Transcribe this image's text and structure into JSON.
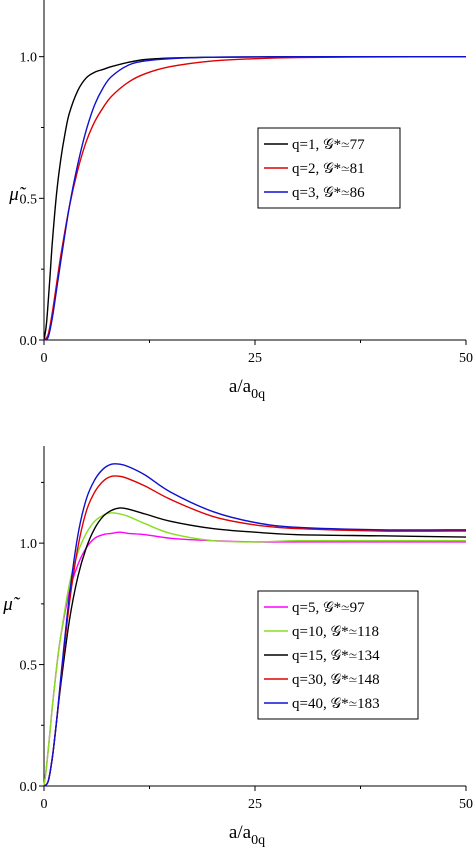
{
  "chart_data": [
    {
      "type": "line",
      "title": "",
      "xlabel": "a/a",
      "xlabel_sub": "0q",
      "ylabel": "μ̃",
      "xlim": [
        0,
        50
      ],
      "ylim": [
        0,
        1.2
      ],
      "xticks": [
        0,
        25,
        50
      ],
      "xtick_labels": [
        "0",
        "25",
        "50"
      ],
      "yticks": [
        0.0,
        0.5,
        1.0
      ],
      "ytick_labels": [
        "0.0",
        "0.5",
        "1.0"
      ],
      "grid": false,
      "legend_position": "right-middle",
      "series": [
        {
          "name": "q=1, 𝒢*≃77",
          "color": "#000000",
          "x": [
            0,
            0.3,
            0.7,
            1.0,
            1.5,
            2.0,
            2.5,
            3.0,
            4.0,
            5.0,
            6.0,
            7.0,
            8.0,
            10.0,
            12.0,
            15.0,
            20.0,
            25.0,
            30.0,
            40.0,
            50.0
          ],
          "y": [
            0,
            0.06,
            0.22,
            0.35,
            0.52,
            0.64,
            0.73,
            0.8,
            0.88,
            0.925,
            0.945,
            0.955,
            0.965,
            0.98,
            0.99,
            0.995,
            0.998,
            0.999,
            1.0,
            1.0,
            1.0
          ]
        },
        {
          "name": "q=2, 𝒢*≃81",
          "color": "#e00000",
          "x": [
            0,
            0.5,
            1.0,
            1.5,
            2.0,
            3.0,
            4.0,
            5.0,
            6.0,
            7.0,
            8.0,
            10.0,
            12.0,
            15.0,
            20.0,
            25.0,
            30.0,
            40.0,
            50.0
          ],
          "y": [
            0,
            0.02,
            0.1,
            0.2,
            0.3,
            0.47,
            0.6,
            0.7,
            0.77,
            0.82,
            0.86,
            0.91,
            0.94,
            0.965,
            0.985,
            0.993,
            0.997,
            0.999,
            1.0
          ]
        },
        {
          "name": "q=3, 𝒢*≃86",
          "color": "#1010d0",
          "x": [
            0,
            0.5,
            1.0,
            1.5,
            2.0,
            3.0,
            4.0,
            5.0,
            6.0,
            7.0,
            8.0,
            10.0,
            12.0,
            15.0,
            20.0,
            25.0,
            30.0,
            40.0,
            50.0
          ],
          "y": [
            0,
            0.01,
            0.08,
            0.18,
            0.28,
            0.47,
            0.62,
            0.74,
            0.83,
            0.89,
            0.93,
            0.97,
            0.985,
            0.993,
            0.998,
            0.999,
            1.0,
            1.0,
            1.0
          ]
        }
      ]
    },
    {
      "type": "line",
      "title": "",
      "xlabel": "a/a",
      "xlabel_sub": "0q",
      "ylabel": "μ̃",
      "xlim": [
        0,
        50
      ],
      "ylim": [
        0,
        1.4
      ],
      "xticks": [
        0,
        25,
        50
      ],
      "xtick_labels": [
        "0",
        "25",
        "50"
      ],
      "yticks": [
        0.0,
        0.5,
        1.0
      ],
      "ytick_labels": [
        "0.0",
        "0.5",
        "1.0"
      ],
      "grid": false,
      "legend_position": "right-bottom",
      "series": [
        {
          "name": "q=5, 𝒢*≃97",
          "color": "#ff00ff",
          "x": [
            0,
            0.3,
            0.7,
            1.0,
            1.5,
            2.0,
            3.0,
            4.0,
            5.0,
            6.0,
            7.0,
            8.0,
            9.0,
            10.0,
            12.0,
            15.0,
            20.0,
            25.0,
            30.0,
            40.0,
            50.0
          ],
          "y": [
            0,
            0.08,
            0.22,
            0.33,
            0.49,
            0.62,
            0.8,
            0.91,
            0.98,
            1.02,
            1.035,
            1.04,
            1.045,
            1.04,
            1.035,
            1.02,
            1.01,
            1.005,
            1.005,
            1.005,
            1.005
          ]
        },
        {
          "name": "q=10, 𝒢*≃118",
          "color": "#88dd22",
          "x": [
            0,
            0.3,
            0.7,
            1.0,
            1.5,
            2.0,
            3.0,
            4.0,
            5.0,
            6.0,
            7.0,
            8.0,
            9.0,
            10.0,
            12.0,
            15.0,
            20.0,
            25.0,
            30.0,
            40.0,
            50.0
          ],
          "y": [
            0,
            0.08,
            0.22,
            0.33,
            0.49,
            0.62,
            0.83,
            0.96,
            1.04,
            1.09,
            1.115,
            1.125,
            1.12,
            1.11,
            1.08,
            1.04,
            1.01,
            1.005,
            1.01,
            1.01,
            1.01
          ]
        },
        {
          "name": "q=15, 𝒢*≃134",
          "color": "#000000",
          "x": [
            0,
            0.5,
            1.0,
            1.5,
            2.0,
            3.0,
            4.0,
            5.0,
            6.0,
            7.0,
            8.0,
            9.0,
            10.0,
            12.0,
            15.0,
            20.0,
            25.0,
            30.0,
            40.0,
            50.0
          ],
          "y": [
            0,
            0.02,
            0.12,
            0.27,
            0.42,
            0.68,
            0.86,
            0.98,
            1.06,
            1.11,
            1.135,
            1.145,
            1.14,
            1.12,
            1.09,
            1.06,
            1.045,
            1.035,
            1.03,
            1.025
          ]
        },
        {
          "name": "q=30, 𝒢*≃148",
          "color": "#e00000",
          "x": [
            0,
            0.5,
            1.0,
            1.5,
            2.0,
            3.0,
            4.0,
            5.0,
            6.0,
            7.0,
            8.0,
            9.0,
            10.0,
            12.0,
            15.0,
            20.0,
            25.0,
            30.0,
            40.0,
            50.0
          ],
          "y": [
            0,
            0.02,
            0.12,
            0.27,
            0.44,
            0.75,
            0.98,
            1.13,
            1.21,
            1.255,
            1.275,
            1.275,
            1.265,
            1.235,
            1.18,
            1.11,
            1.075,
            1.06,
            1.05,
            1.05
          ]
        },
        {
          "name": "q=40, 𝒢*≃183",
          "color": "#1010d0",
          "x": [
            0,
            0.5,
            1.0,
            1.5,
            2.0,
            3.0,
            4.0,
            5.0,
            6.0,
            7.0,
            8.0,
            9.0,
            10.0,
            12.0,
            15.0,
            20.0,
            25.0,
            30.0,
            40.0,
            50.0
          ],
          "y": [
            0,
            0.02,
            0.12,
            0.27,
            0.45,
            0.78,
            1.03,
            1.18,
            1.26,
            1.305,
            1.325,
            1.325,
            1.315,
            1.28,
            1.21,
            1.13,
            1.085,
            1.065,
            1.055,
            1.055
          ]
        }
      ]
    }
  ]
}
